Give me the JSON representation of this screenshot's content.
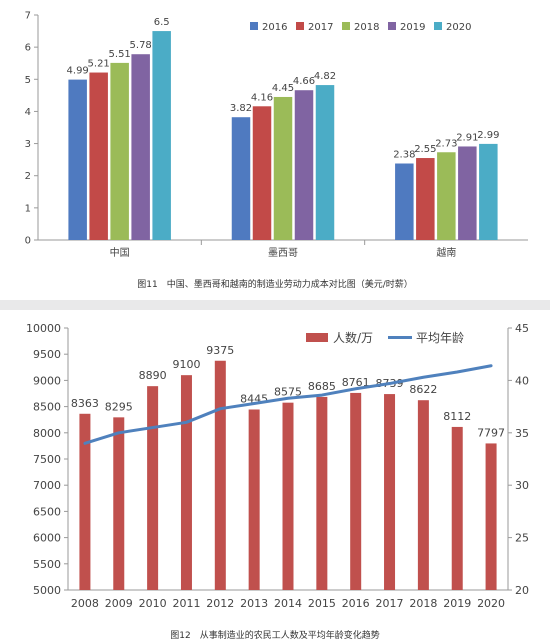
{
  "figure1": {
    "caption": "图11　中国、墨西哥和越南的制造业劳动力成本对比图（美元/时薪）"
  },
  "figure2": {
    "caption": "图12　从事制造业的农民工人数及平均年龄变化趋势"
  },
  "colors": {
    "s2016": "#4f7ac0",
    "s2017": "#c24a48",
    "s2018": "#9bbb58",
    "s2019": "#8064a2",
    "s2020": "#4bacc6",
    "workers_bar": "#c0504d",
    "age_line": "#4f81bd",
    "axis": "#9a9a9a",
    "text": "#444444"
  },
  "chart_data": [
    {
      "type": "bar",
      "title": "",
      "xlabel": "",
      "ylabel": "",
      "categories": [
        "中国",
        "墨西哥",
        "越南"
      ],
      "series": [
        {
          "name": "2016",
          "values": [
            4.99,
            3.82,
            2.38
          ],
          "labels": [
            "4.99",
            "3.82",
            "2.38"
          ]
        },
        {
          "name": "2017",
          "values": [
            5.21,
            4.16,
            2.55
          ],
          "labels": [
            "5.21",
            "4.16",
            "2.55"
          ]
        },
        {
          "name": "2018",
          "values": [
            5.51,
            4.45,
            2.73
          ],
          "labels": [
            "5.51",
            "4.45",
            "2.73"
          ]
        },
        {
          "name": "2019",
          "values": [
            5.78,
            4.66,
            2.91
          ],
          "labels": [
            "5.78",
            "4.66",
            "2.91"
          ]
        },
        {
          "name": "2020",
          "values": [
            6.5,
            4.82,
            2.99
          ],
          "labels": [
            "6.5",
            "4.82",
            "2.99"
          ]
        }
      ],
      "ylim": [
        0,
        7
      ],
      "yticks": [
        "0",
        "1",
        "2",
        "3",
        "4",
        "5",
        "6",
        "7"
      ],
      "grid": false,
      "legend": "top-right"
    },
    {
      "type": "bar+line",
      "title": "",
      "xlabel": "",
      "ylabel": "",
      "categories": [
        "2008",
        "2009",
        "2010",
        "2011",
        "2012",
        "2013",
        "2014",
        "2015",
        "2016",
        "2017",
        "2018",
        "2019",
        "2020"
      ],
      "series": [
        {
          "name": "人数/万",
          "kind": "bar",
          "axis": "left",
          "values": [
            8363,
            8295,
            8890,
            9100,
            9375,
            8445,
            8575,
            8685,
            8761,
            8739,
            8622,
            8112,
            7797
          ],
          "labels": [
            "8363",
            "8295",
            "8890",
            "9100",
            "9375",
            "8445",
            "8575",
            "8685",
            "8761",
            "8739",
            "8622",
            "8112",
            "7797"
          ]
        },
        {
          "name": "平均年龄",
          "kind": "line",
          "axis": "right",
          "values": [
            34,
            35,
            35.5,
            36,
            37.3,
            37.8,
            38.3,
            38.6,
            39.2,
            39.7,
            40.3,
            40.8,
            41.4
          ]
        }
      ],
      "ylim_left": [
        5000,
        10000
      ],
      "yticks_left": [
        "5000",
        "5500",
        "6000",
        "6500",
        "7000",
        "7500",
        "8000",
        "8500",
        "9000",
        "9500",
        "10000"
      ],
      "ylim_right": [
        20,
        45
      ],
      "yticks_right": [
        "20",
        "25",
        "30",
        "35",
        "40",
        "45"
      ],
      "grid": false,
      "legend": "top-right"
    }
  ]
}
